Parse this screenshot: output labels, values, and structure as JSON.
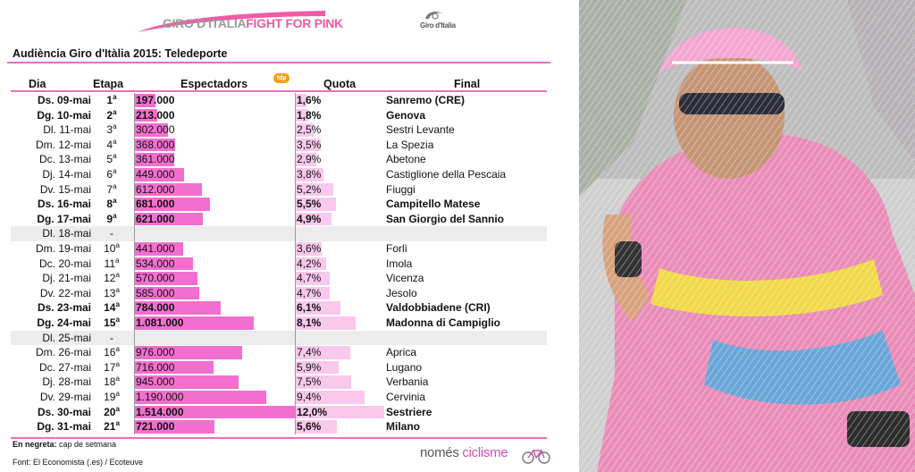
{
  "header": {
    "logo_text_a": "GIRO D'ITALIA",
    "logo_text_b": "FIGHT FOR PINK",
    "mark_text": "Giro d'Italia",
    "title": "Audiència Giro d'Itàlia 2015: Teledeporte",
    "badge": "tdp"
  },
  "columns": {
    "day": "Dia",
    "stage": "Etapa",
    "audience": "Espectadors",
    "quota": "Quota",
    "final": "Final"
  },
  "chart_data": {
    "type": "table",
    "title": "Audiència Giro d'Itàlia 2015: Teledeporte",
    "audience_max": 1514000,
    "quota_max": 12.0,
    "rows": [
      {
        "day": "Ds. 09-mai",
        "stage": "1",
        "audience": "197.000",
        "audience_value": 197000,
        "quota": "1,6%",
        "quota_value": 1.6,
        "final": "Sanremo (CRE)",
        "weekend": true
      },
      {
        "day": "Dg. 10-mai",
        "stage": "2",
        "audience": "213.000",
        "audience_value": 213000,
        "quota": "1,8%",
        "quota_value": 1.8,
        "final": "Genova",
        "weekend": true
      },
      {
        "day": "Dl. 11-mai",
        "stage": "3",
        "audience": "302.000",
        "audience_value": 302000,
        "quota": "2,5%",
        "quota_value": 2.5,
        "final": "Sestri Levante",
        "weekend": false
      },
      {
        "day": "Dm. 12-mai",
        "stage": "4",
        "audience": "368.000",
        "audience_value": 368000,
        "quota": "3,5%",
        "quota_value": 3.5,
        "final": "La Spezia",
        "weekend": false
      },
      {
        "day": "Dc. 13-mai",
        "stage": "5",
        "audience": "361.000",
        "audience_value": 361000,
        "quota": "2,9%",
        "quota_value": 2.9,
        "final": "Abetone",
        "weekend": false
      },
      {
        "day": "Dj. 14-mai",
        "stage": "6",
        "audience": "449.000",
        "audience_value": 449000,
        "quota": "3,8%",
        "quota_value": 3.8,
        "final": "Castiglione della Pescaia",
        "weekend": false
      },
      {
        "day": "Dv. 15-mai",
        "stage": "7",
        "audience": "612.000",
        "audience_value": 612000,
        "quota": "5,2%",
        "quota_value": 5.2,
        "final": "Fiuggi",
        "weekend": false
      },
      {
        "day": "Ds. 16-mai",
        "stage": "8",
        "audience": "681.000",
        "audience_value": 681000,
        "quota": "5,5%",
        "quota_value": 5.5,
        "final": "Campitello Matese",
        "weekend": true
      },
      {
        "day": "Dg. 17-mai",
        "stage": "9",
        "audience": "621.000",
        "audience_value": 621000,
        "quota": "4,9%",
        "quota_value": 4.9,
        "final": "San Giorgio del Sannio",
        "weekend": true
      },
      {
        "day": "Dl. 18-mai",
        "stage": "-",
        "audience": "",
        "audience_value": null,
        "quota": "",
        "quota_value": null,
        "final": "",
        "weekend": false,
        "rest": true
      },
      {
        "day": "Dm. 19-mai",
        "stage": "10",
        "audience": "441.000",
        "audience_value": 441000,
        "quota": "3,6%",
        "quota_value": 3.6,
        "final": "Forlì",
        "weekend": false
      },
      {
        "day": "Dc. 20-mai",
        "stage": "11",
        "audience": "534.000",
        "audience_value": 534000,
        "quota": "4,2%",
        "quota_value": 4.2,
        "final": "Imola",
        "weekend": false
      },
      {
        "day": "Dj. 21-mai",
        "stage": "12",
        "audience": "570.000",
        "audience_value": 570000,
        "quota": "4,7%",
        "quota_value": 4.7,
        "final": "Vicenza",
        "weekend": false
      },
      {
        "day": "Dv. 22-mai",
        "stage": "13",
        "audience": "585.000",
        "audience_value": 585000,
        "quota": "4,7%",
        "quota_value": 4.7,
        "final": "Jesolo",
        "weekend": false
      },
      {
        "day": "Ds. 23-mai",
        "stage": "14",
        "audience": "784.000",
        "audience_value": 784000,
        "quota": "6,1%",
        "quota_value": 6.1,
        "final": "Valdobbiadene (CRI)",
        "weekend": true
      },
      {
        "day": "Dg. 24-mai",
        "stage": "15",
        "audience": "1.081.000",
        "audience_value": 1081000,
        "quota": "8,1%",
        "quota_value": 8.1,
        "final": "Madonna di Campiglio",
        "weekend": true
      },
      {
        "day": "Dl. 25-mai",
        "stage": "-",
        "audience": "",
        "audience_value": null,
        "quota": "",
        "quota_value": null,
        "final": "",
        "weekend": false,
        "rest": true
      },
      {
        "day": "Dm. 26-mai",
        "stage": "16",
        "audience": "976.000",
        "audience_value": 976000,
        "quota": "7,4%",
        "quota_value": 7.4,
        "final": "Aprica",
        "weekend": false
      },
      {
        "day": "Dc. 27-mai",
        "stage": "17",
        "audience": "716.000",
        "audience_value": 716000,
        "quota": "5,9%",
        "quota_value": 5.9,
        "final": "Lugano",
        "weekend": false
      },
      {
        "day": "Dj. 28-mai",
        "stage": "18",
        "audience": "945.000",
        "audience_value": 945000,
        "quota": "7,5%",
        "quota_value": 7.5,
        "final": "Verbania",
        "weekend": false
      },
      {
        "day": "Dv. 29-mai",
        "stage": "19",
        "audience": "1.190.000",
        "audience_value": 1190000,
        "quota": "9,4%",
        "quota_value": 9.4,
        "final": "Cervinia",
        "weekend": false
      },
      {
        "day": "Ds. 30-mai",
        "stage": "20",
        "audience": "1.514.000",
        "audience_value": 1514000,
        "quota": "12,0%",
        "quota_value": 12.0,
        "final": "Sestriere",
        "weekend": true
      },
      {
        "day": "Dg. 31-mai",
        "stage": "21",
        "audience": "721.000",
        "audience_value": 721000,
        "quota": "5,6%",
        "quota_value": 5.6,
        "final": "Milano",
        "weekend": true
      }
    ]
  },
  "footer": {
    "note_bold": "En negreta:",
    "note_text": " cap de setmana",
    "source": "Font: El Economista (.es) / Ecoteuve",
    "brand_a": "només ",
    "brand_b": "ciclisme"
  },
  "colors": {
    "accent_pink": "#f26fcf",
    "light_pink": "#f9c8ec",
    "rule_pink": "#e86fc2",
    "rest_gray": "#ececec"
  },
  "icons": [
    "giro-wordmark-icon",
    "giro-swirl-icon",
    "tdp-badge-icon",
    "bicycle-icon",
    "cyclist-photo"
  ]
}
